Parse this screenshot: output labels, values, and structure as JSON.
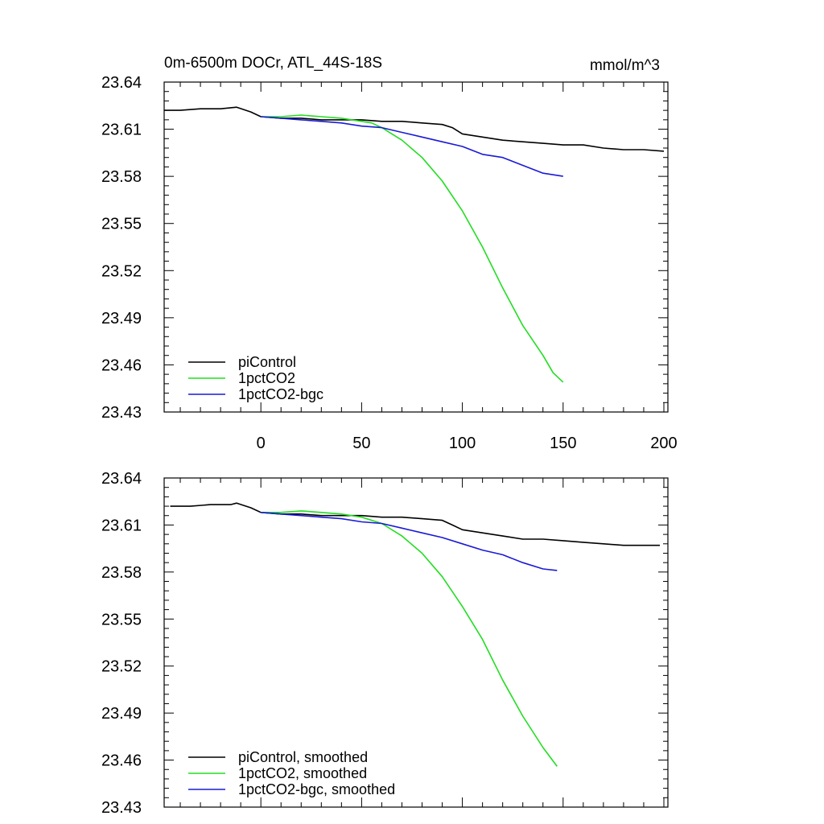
{
  "chart_data": [
    {
      "type": "line",
      "title": "0m-6500m DOCr, ATL_44S-18S",
      "units": "mmol/m^3",
      "xlim": [
        -48,
        202
      ],
      "ylim": [
        23.43,
        23.64
      ],
      "xticks": [
        0,
        50,
        100,
        150,
        200
      ],
      "xtick_labels": [
        "0",
        "50",
        "100",
        "150",
        "200"
      ],
      "yticks": [
        23.43,
        23.46,
        23.49,
        23.52,
        23.55,
        23.58,
        23.61,
        23.64
      ],
      "ytick_labels": [
        "23.43",
        "23.46",
        "23.49",
        "23.52",
        "23.55",
        "23.58",
        "23.61",
        "23.64"
      ],
      "legend_position": "bottom-left",
      "grid": false,
      "series": [
        {
          "name": "piControl",
          "color": "#000000",
          "x": [
            -48,
            -40,
            -30,
            -20,
            -12,
            -5,
            0,
            10,
            20,
            30,
            40,
            50,
            60,
            70,
            80,
            90,
            95,
            100,
            110,
            120,
            130,
            140,
            150,
            160,
            170,
            180,
            190,
            200
          ],
          "y": [
            23.622,
            23.622,
            23.623,
            23.623,
            23.624,
            23.621,
            23.618,
            23.617,
            23.617,
            23.616,
            23.616,
            23.616,
            23.615,
            23.615,
            23.614,
            23.613,
            23.611,
            23.607,
            23.605,
            23.603,
            23.602,
            23.601,
            23.6,
            23.6,
            23.598,
            23.597,
            23.597,
            23.596
          ]
        },
        {
          "name": "1pctCO2",
          "color": "#22dd22",
          "x": [
            0,
            10,
            20,
            30,
            40,
            50,
            55,
            60,
            70,
            80,
            90,
            100,
            110,
            120,
            130,
            140,
            145,
            150
          ],
          "y": [
            23.618,
            23.618,
            23.619,
            23.618,
            23.617,
            23.615,
            23.614,
            23.611,
            23.603,
            23.592,
            23.577,
            23.558,
            23.535,
            23.509,
            23.485,
            23.466,
            23.455,
            23.449
          ]
        },
        {
          "name": "1pctCO2-bgc",
          "color": "#1a1ad6",
          "x": [
            0,
            10,
            20,
            30,
            40,
            50,
            60,
            70,
            80,
            90,
            100,
            110,
            120,
            130,
            140,
            150
          ],
          "y": [
            23.618,
            23.617,
            23.616,
            23.615,
            23.614,
            23.612,
            23.611,
            23.608,
            23.605,
            23.602,
            23.599,
            23.594,
            23.592,
            23.587,
            23.582,
            23.58
          ]
        }
      ]
    },
    {
      "type": "line",
      "xlim": [
        -48,
        202
      ],
      "ylim": [
        23.43,
        23.64
      ],
      "xticks": [
        0,
        50,
        100,
        150,
        200
      ],
      "yticks": [
        23.43,
        23.46,
        23.49,
        23.52,
        23.55,
        23.58,
        23.61,
        23.64
      ],
      "ytick_labels": [
        "23.43",
        "23.46",
        "23.49",
        "23.52",
        "23.55",
        "23.58",
        "23.61",
        "23.64"
      ],
      "legend_position": "bottom-left",
      "grid": false,
      "series": [
        {
          "name": "piControl, smoothed",
          "color": "#000000",
          "x": [
            -45,
            -35,
            -25,
            -15,
            -12,
            -5,
            0,
            10,
            20,
            30,
            40,
            50,
            60,
            70,
            80,
            90,
            95,
            100,
            110,
            120,
            130,
            140,
            150,
            160,
            170,
            180,
            190,
            198
          ],
          "y": [
            23.622,
            23.622,
            23.623,
            23.623,
            23.624,
            23.621,
            23.618,
            23.617,
            23.617,
            23.616,
            23.616,
            23.616,
            23.615,
            23.615,
            23.614,
            23.613,
            23.61,
            23.607,
            23.605,
            23.603,
            23.601,
            23.601,
            23.6,
            23.599,
            23.598,
            23.597,
            23.597,
            23.597
          ]
        },
        {
          "name": "1pctCO2, smoothed",
          "color": "#22dd22",
          "x": [
            0,
            10,
            20,
            30,
            40,
            50,
            60,
            70,
            80,
            90,
            100,
            110,
            120,
            130,
            140,
            147
          ],
          "y": [
            23.618,
            23.618,
            23.619,
            23.618,
            23.617,
            23.615,
            23.611,
            23.603,
            23.592,
            23.577,
            23.558,
            23.537,
            23.511,
            23.488,
            23.468,
            23.456
          ]
        },
        {
          "name": "1pctCO2-bgc, smoothed",
          "color": "#1a1ad6",
          "x": [
            0,
            10,
            20,
            30,
            40,
            50,
            60,
            70,
            80,
            90,
            100,
            110,
            120,
            130,
            140,
            147
          ],
          "y": [
            23.618,
            23.617,
            23.616,
            23.615,
            23.614,
            23.612,
            23.611,
            23.608,
            23.605,
            23.602,
            23.598,
            23.594,
            23.591,
            23.586,
            23.582,
            23.581
          ]
        }
      ]
    }
  ]
}
